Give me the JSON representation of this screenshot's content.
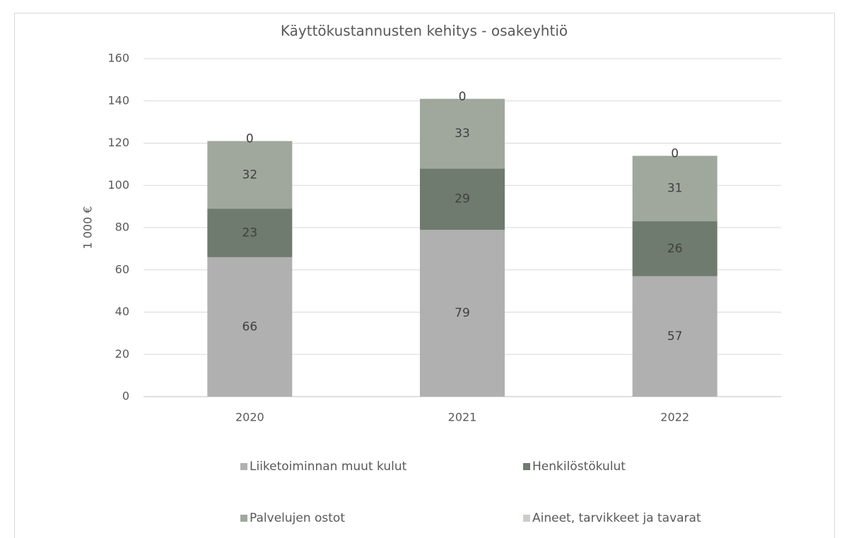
{
  "chart_data": {
    "type": "stacked_bar",
    "title": "Käyttökustannusten kehitys - osakeyhtiö",
    "y_label": "1 000 €",
    "categories": [
      "2020",
      "2021",
      "2022"
    ],
    "series": [
      {
        "name": "Liiketoiminnan muut kulut",
        "color": "#b0b0b0",
        "values": [
          66,
          79,
          57
        ]
      },
      {
        "name": "Henkilöstökulut",
        "color": "#6e7b6e",
        "values": [
          23,
          29,
          26
        ]
      },
      {
        "name": "Palvelujen ostot",
        "color": "#a0a89e",
        "values": [
          32,
          33,
          31
        ]
      },
      {
        "name": "Aineet, tarvikkeet ja tavarat",
        "color": "#c8cfc8",
        "values": [
          0,
          0,
          0
        ]
      }
    ],
    "ylim": [
      0,
      160
    ],
    "yticks": [
      0,
      20,
      40,
      60,
      80,
      100,
      120,
      140,
      160
    ],
    "grid": true,
    "legend": "bottom"
  }
}
